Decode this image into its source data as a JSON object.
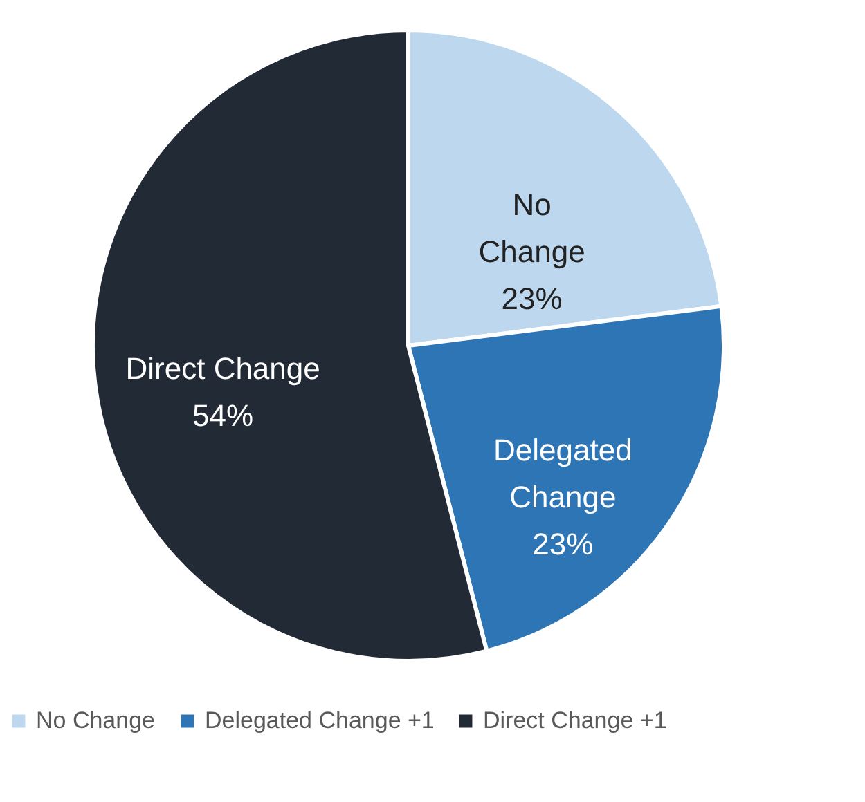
{
  "chart_data": {
    "type": "pie",
    "categories": [
      "No Change",
      "Delegated Change +1",
      "Direct Change +1"
    ],
    "values": [
      23,
      23,
      54
    ],
    "colors": [
      "#bdd7ee",
      "#2e75b6",
      "#222a35"
    ],
    "value_labels": [
      "No\nChange\n23%",
      "Delegated\nChange\n23%",
      "Direct Change\n54%"
    ],
    "legend": "bottom"
  }
}
